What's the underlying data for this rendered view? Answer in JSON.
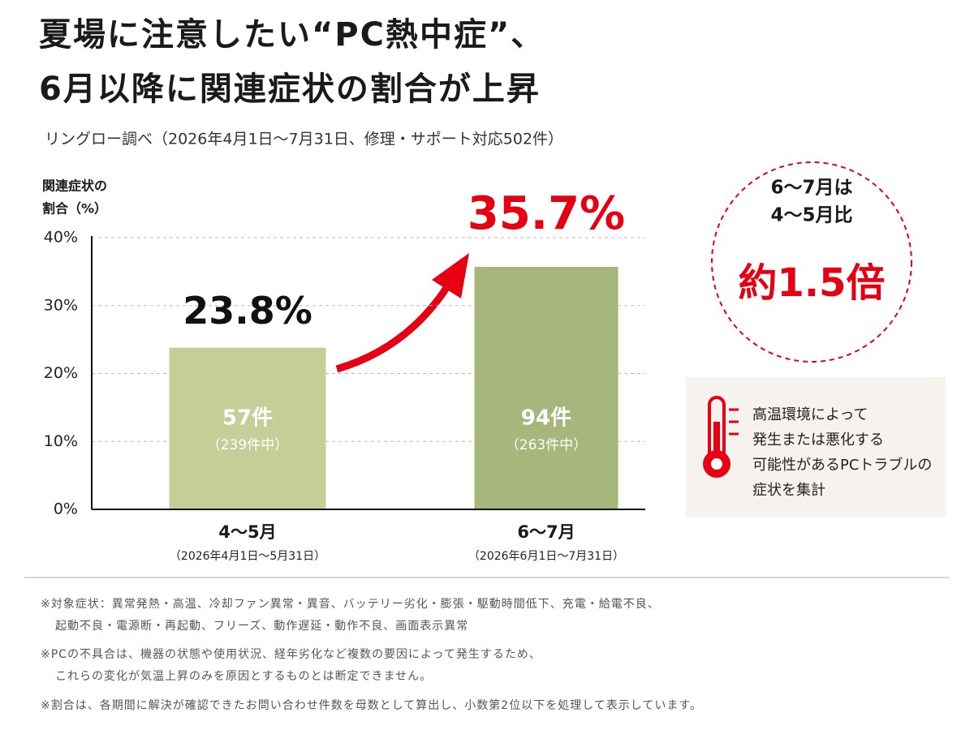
{
  "header": {
    "title": [
      "夏場に注意したい“PC熱中症”、",
      "6月以降に関連症状の割合が上昇"
    ],
    "subtitle": "リングロー調べ（2026年4月1日～7月31日、修理・サポート対応502件）"
  },
  "chart_data": {
    "type": "bar",
    "ylabel": [
      "関連症状の",
      "割合（%）"
    ],
    "categories": [
      "4～5月",
      "6～7月"
    ],
    "category_notes": [
      "（2026年4月1日～5月31日）",
      "（2026年6月1日～7月31日）"
    ],
    "values": [
      23.8,
      35.7
    ],
    "value_labels": [
      "23.8%",
      "35.7%"
    ],
    "value_label_colors": [
      "#111111",
      "#e60012"
    ],
    "colors": [
      "#c7cd97",
      "#a7b77b"
    ],
    "count_labels": [
      "57件",
      "94件"
    ],
    "total_labels": [
      "（239件中）",
      "（263件中）"
    ],
    "ylim": [
      0,
      40
    ],
    "yticks": [
      {
        "value": 0,
        "label": "0%"
      },
      {
        "value": 10,
        "label": "10%"
      },
      {
        "value": 20,
        "label": "20%"
      },
      {
        "value": 30,
        "label": "30%"
      },
      {
        "value": 40,
        "label": "40%"
      }
    ],
    "grid": true
  },
  "callout": {
    "lines": [
      "6～7月は",
      "4～5月比",
      "約1.5倍"
    ]
  },
  "note_box": {
    "lines": [
      "高温環境によって",
      "発生または悪化する",
      "可能性があるPCトラブルの",
      "症状を集計"
    ]
  },
  "footnotes": [
    [
      "※対象症状：異常発熱・高温、冷却ファン異常・異音、バッテリー劣化・膨張・駆動時間低下、充電・給電不良、",
      "起動不良・電源断・再起動、フリーズ、動作遅延・動作不良、画面表示異常"
    ],
    [
      "※PCの不具合は、機器の状態や使用状況、経年劣化など複数の要因によって発生するため、",
      "これらの変化が気温上昇のみを原因とするものとは断定できません。"
    ],
    [
      "※割合は、各期間に解決が確認できたお問い合わせ件数を母数として算出し、小数第2位以下を処理して表示しています。"
    ]
  ]
}
